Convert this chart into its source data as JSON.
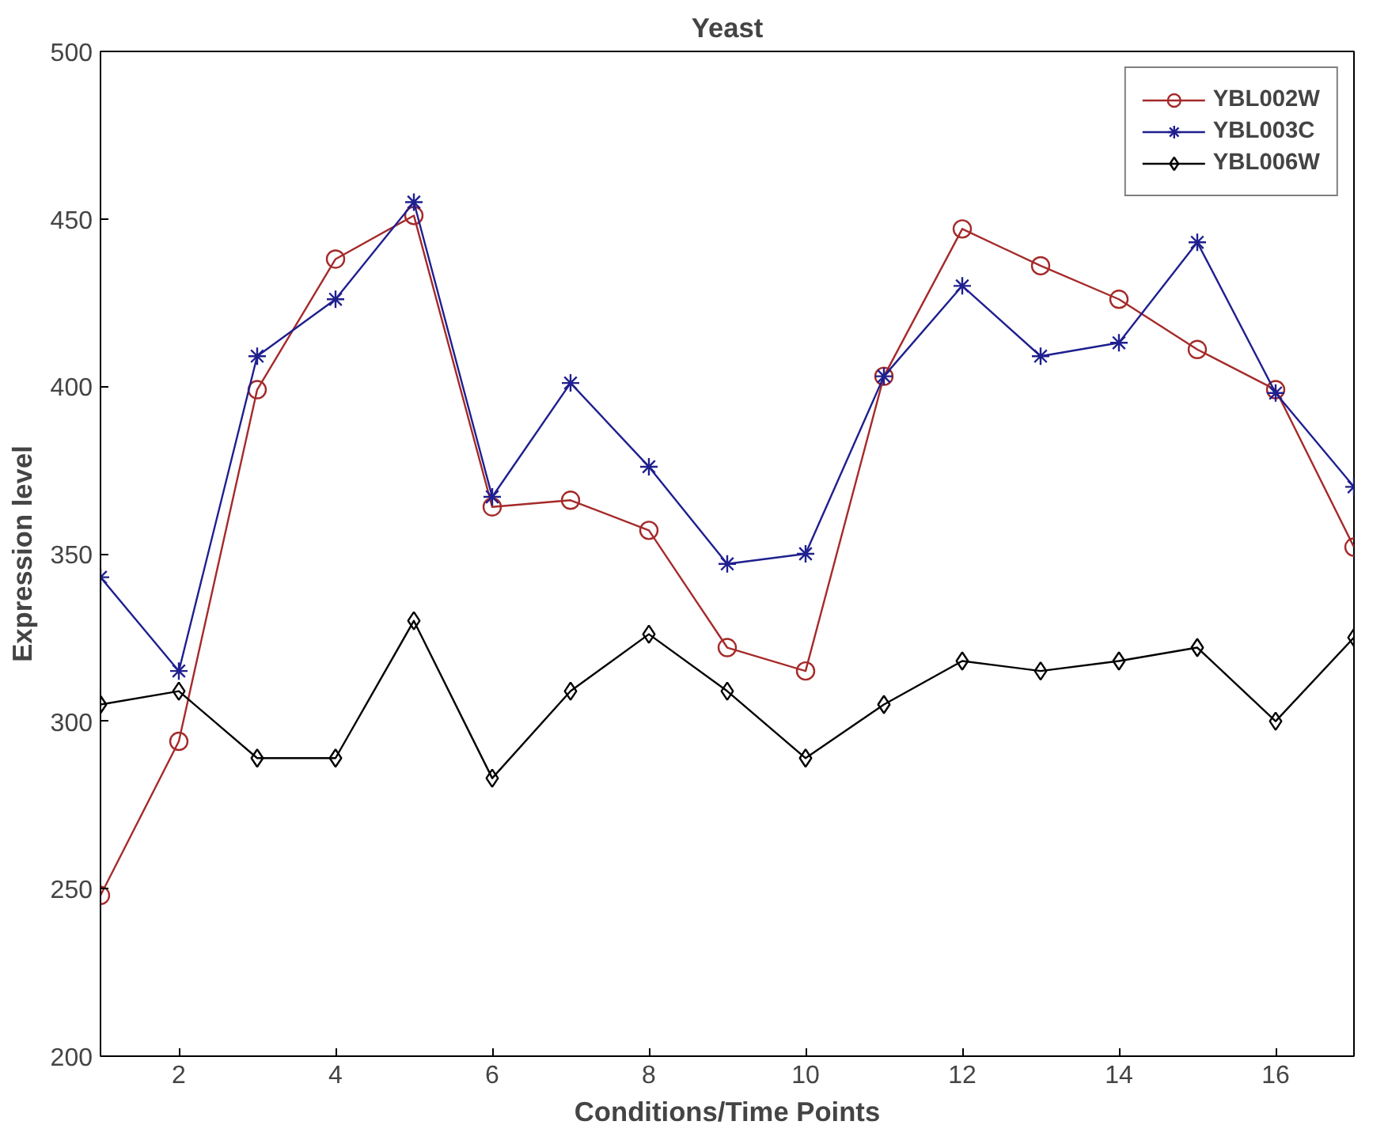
{
  "chart_data": {
    "type": "line",
    "title": "Yeast",
    "xlabel": "Conditions/Time Points",
    "ylabel": "Expression level",
    "x": [
      1,
      2,
      3,
      4,
      5,
      6,
      7,
      8,
      9,
      10,
      11,
      12,
      13,
      14,
      15,
      16,
      17
    ],
    "xlim": [
      1,
      17
    ],
    "xticks": [
      2,
      4,
      6,
      8,
      10,
      12,
      14,
      16
    ],
    "ylim": [
      200,
      500
    ],
    "yticks": [
      200,
      250,
      300,
      350,
      400,
      450,
      500
    ],
    "grid": false,
    "legend": "top right",
    "line_style": "solid",
    "series": [
      {
        "name": "YBL002W",
        "color": "#a52a2a",
        "marker": "circle",
        "values": [
          248,
          294,
          399,
          438,
          451,
          364,
          366,
          357,
          322,
          315,
          403,
          447,
          436,
          426,
          411,
          399,
          352
        ]
      },
      {
        "name": "YBL003C",
        "color": "#1f1f8f",
        "marker": "cross",
        "values": [
          343,
          315,
          409,
          426,
          455,
          367,
          401,
          376,
          347,
          350,
          403,
          430,
          409,
          413,
          443,
          398,
          370
        ]
      },
      {
        "name": "YBL006W",
        "color": "#000000",
        "marker": "diamond",
        "values": [
          305,
          309,
          289,
          289,
          330,
          283,
          309,
          326,
          309,
          289,
          305,
          318,
          315,
          318,
          322,
          300,
          325
        ]
      }
    ]
  }
}
